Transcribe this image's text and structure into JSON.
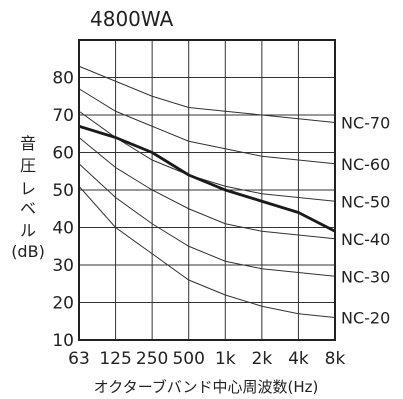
{
  "chart_data": {
    "type": "line",
    "title": "4800WA",
    "xlabel": "オクターブバンド中心周波数(Hz)",
    "ylabel_lines": [
      "音",
      "圧",
      "レ",
      "ベ",
      "ル",
      "(dB)"
    ],
    "categories": [
      "63",
      "125",
      "250",
      "500",
      "1k",
      "2k",
      "4k",
      "8k"
    ],
    "ylim": [
      10,
      90
    ],
    "yticks": [
      10,
      20,
      30,
      40,
      50,
      60,
      70,
      80
    ],
    "grid": true,
    "nc_curves": [
      {
        "name": "NC-70",
        "values": [
          83,
          79,
          75,
          72,
          71,
          70,
          69,
          68
        ]
      },
      {
        "name": "NC-60",
        "values": [
          77,
          71,
          67,
          63,
          61,
          59,
          58,
          57
        ]
      },
      {
        "name": "NC-50",
        "values": [
          71,
          64,
          58,
          54,
          51,
          49,
          48,
          47
        ]
      },
      {
        "name": "NC-40",
        "values": [
          64,
          56,
          50,
          45,
          41,
          39,
          38,
          37
        ]
      },
      {
        "name": "NC-30",
        "values": [
          57,
          48,
          41,
          35,
          31,
          29,
          28,
          27
        ]
      },
      {
        "name": "NC-20",
        "values": [
          51,
          40,
          33,
          26,
          22,
          19,
          17,
          16
        ]
      }
    ],
    "measured": {
      "values": [
        67,
        64,
        60,
        54,
        50,
        47,
        44,
        39
      ]
    },
    "colors": {
      "grid": "#333333",
      "nc": "#333333",
      "measured": "#1a1a1a"
    }
  }
}
